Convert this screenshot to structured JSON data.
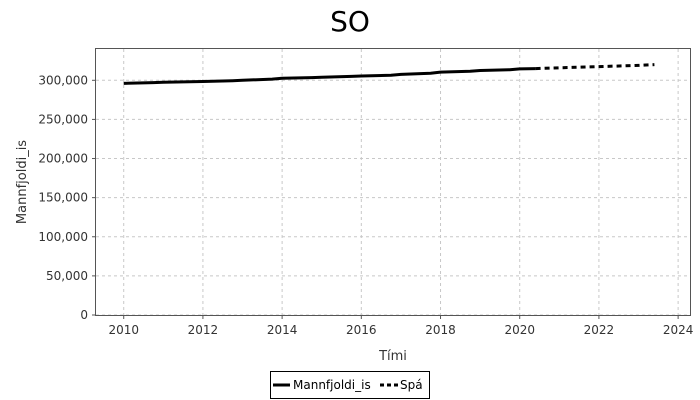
{
  "chart_data": {
    "type": "line",
    "title": "SO",
    "xlabel": "Tími",
    "ylabel": "Mannfjoldi_is",
    "xlim": [
      2009.3,
      2024.3
    ],
    "ylim": [
      0,
      340000
    ],
    "x_ticks": [
      2010,
      2012,
      2014,
      2016,
      2018,
      2020,
      2022,
      2024
    ],
    "y_ticks": [
      0,
      50000,
      100000,
      150000,
      200000,
      250000,
      300000
    ],
    "x_tick_labels": [
      "2010",
      "2012",
      "2014",
      "2016",
      "2018",
      "2020",
      "2022",
      "2024"
    ],
    "y_tick_labels": [
      "0",
      "50,000",
      "100,000",
      "150,000",
      "200,000",
      "250,000",
      "300,000"
    ],
    "grid": true,
    "legend_position": "bottom",
    "series": [
      {
        "name": "Mannfjoldi_is",
        "style": "solid",
        "color": "#000000",
        "x": [
          2010.0,
          2010.75,
          2011.0,
          2011.5,
          2012.0,
          2012.75,
          2013.0,
          2013.75,
          2014.0,
          2014.75,
          2015.0,
          2015.75,
          2016.0,
          2016.75,
          2017.0,
          2017.75,
          2018.0,
          2018.75,
          2019.0,
          2019.75,
          2020.0,
          2020.4
        ],
        "y": [
          296000,
          297000,
          297500,
          298000,
          298500,
          299500,
          300000,
          301500,
          302500,
          303500,
          304000,
          305000,
          305500,
          306500,
          307500,
          309000,
          310500,
          311500,
          312500,
          313500,
          314500,
          315000
        ]
      },
      {
        "name": "Spá",
        "style": "dashed",
        "color": "#000000",
        "x": [
          2020.4,
          2021.0,
          2022.0,
          2023.0,
          2023.4
        ],
        "y": [
          315000,
          316000,
          317500,
          319000,
          320000
        ]
      }
    ]
  }
}
